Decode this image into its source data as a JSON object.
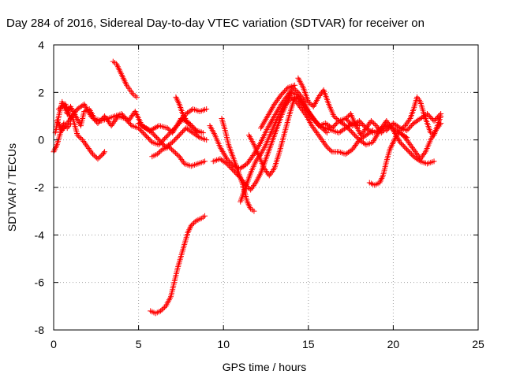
{
  "chart_data": {
    "type": "scatter",
    "title": "Day 284 of 2016, Sidereal Day-to-day VTEC variation (SDTVAR) for receiver on",
    "xlabel": "GPS time / hours",
    "ylabel": "SDTVAR / TECUs",
    "xlim": [
      0,
      25
    ],
    "ylim": [
      -8,
      4
    ],
    "x_ticks": [
      0,
      5,
      10,
      15,
      20,
      25
    ],
    "x_tick_labels": [
      "0",
      "5",
      "10",
      "15",
      "20",
      "25"
    ],
    "y_ticks": [
      -8,
      -6,
      -4,
      -2,
      0,
      2,
      4
    ],
    "y_tick_labels": [
      "-8",
      "-6",
      "-4",
      "-2",
      "0",
      "2",
      "4"
    ],
    "grid": true,
    "marker": "+",
    "series": [
      {
        "color": "#ff0000",
        "points": [
          [
            0.1,
            0.3
          ],
          [
            0.3,
            1.0
          ],
          [
            0.5,
            1.6
          ],
          [
            0.8,
            1.1
          ],
          [
            1.0,
            1.4
          ],
          [
            1.3,
            1.0
          ],
          [
            1.6,
            0.6
          ],
          [
            1.8,
            1.2
          ],
          [
            2.1,
            1.3
          ],
          [
            2.4,
            0.9
          ],
          [
            2.8,
            0.8
          ],
          [
            3.2,
            0.9
          ],
          [
            3.6,
            1.0
          ],
          [
            4.0,
            1.1
          ],
          [
            4.4,
            0.8
          ],
          [
            4.8,
            1.2
          ],
          [
            5.2,
            0.6
          ],
          [
            5.7,
            0.4
          ],
          [
            6.2,
            0.6
          ],
          [
            6.7,
            0.5
          ],
          [
            7.0,
            0.3
          ],
          [
            7.5,
            0.9
          ],
          [
            8.0,
            0.7
          ],
          [
            8.4,
            0.4
          ],
          [
            8.8,
            0.3
          ]
        ]
      },
      {
        "color": "#ff0000",
        "points": [
          [
            0.2,
            0.8
          ],
          [
            0.5,
            0.4
          ],
          [
            0.8,
            0.7
          ],
          [
            1.1,
            1.0
          ],
          [
            1.4,
            0.2
          ],
          [
            1.7,
            0.0
          ],
          [
            2.0,
            -0.3
          ],
          [
            2.3,
            -0.6
          ],
          [
            2.6,
            -0.8
          ],
          [
            2.9,
            -0.6
          ],
          [
            3.0,
            -0.5
          ]
        ]
      },
      {
        "color": "#ff0000",
        "points": [
          [
            0.3,
            1.3
          ],
          [
            0.7,
            1.5
          ],
          [
            1.0,
            0.9
          ],
          [
            1.4,
            1.3
          ],
          [
            1.8,
            1.5
          ],
          [
            2.2,
            1.0
          ],
          [
            2.6,
            0.7
          ],
          [
            3.0,
            1.0
          ],
          [
            3.4,
            0.6
          ],
          [
            3.8,
            1.0
          ],
          [
            4.2,
            0.9
          ],
          [
            4.6,
            0.6
          ],
          [
            5.0,
            0.5
          ],
          [
            5.4,
            0.2
          ],
          [
            5.8,
            -0.1
          ],
          [
            6.2,
            -0.2
          ],
          [
            6.6,
            0.1
          ],
          [
            7.0,
            0.4
          ],
          [
            7.4,
            0.7
          ],
          [
            7.8,
            1.1
          ],
          [
            8.2,
            1.3
          ],
          [
            8.6,
            1.2
          ],
          [
            9.0,
            1.3
          ]
        ]
      },
      {
        "color": "#ff0000",
        "points": [
          [
            0.0,
            -0.5
          ],
          [
            0.2,
            -0.2
          ],
          [
            0.4,
            0.3
          ],
          [
            0.6,
            0.7
          ],
          [
            0.8,
            0.5
          ],
          [
            1.0,
            0.7
          ]
        ]
      },
      {
        "color": "#ff0000",
        "points": [
          [
            3.5,
            3.3
          ],
          [
            3.7,
            3.2
          ],
          [
            3.9,
            2.9
          ],
          [
            4.1,
            2.6
          ],
          [
            4.3,
            2.3
          ],
          [
            4.5,
            2.1
          ],
          [
            4.7,
            1.9
          ],
          [
            4.9,
            1.8
          ]
        ]
      },
      {
        "color": "#ff0000",
        "points": [
          [
            5.0,
            0.7
          ],
          [
            5.4,
            0.5
          ],
          [
            5.8,
            0.3
          ],
          [
            6.2,
            0.0
          ],
          [
            6.6,
            -0.3
          ],
          [
            7.0,
            -0.1
          ],
          [
            7.4,
            0.2
          ],
          [
            7.8,
            0.5
          ],
          [
            8.2,
            0.3
          ],
          [
            8.6,
            0.1
          ],
          [
            9.0,
            0.0
          ]
        ]
      },
      {
        "color": "#ff0000",
        "points": [
          [
            5.8,
            -0.7
          ],
          [
            6.1,
            -0.6
          ],
          [
            6.4,
            -0.4
          ],
          [
            6.8,
            -0.3
          ],
          [
            7.1,
            -0.5
          ],
          [
            7.4,
            -0.7
          ],
          [
            7.7,
            -1.0
          ],
          [
            8.1,
            -1.1
          ],
          [
            8.5,
            -1.0
          ],
          [
            8.9,
            -0.9
          ]
        ]
      },
      {
        "color": "#ff0000",
        "points": [
          [
            7.2,
            1.8
          ],
          [
            7.4,
            1.5
          ],
          [
            7.6,
            1.1
          ],
          [
            7.9,
            0.7
          ],
          [
            8.2,
            0.5
          ],
          [
            8.5,
            0.3
          ]
        ]
      },
      {
        "color": "#ff0000",
        "points": [
          [
            5.7,
            -7.2
          ],
          [
            6.0,
            -7.3
          ],
          [
            6.3,
            -7.2
          ],
          [
            6.6,
            -7.0
          ],
          [
            6.9,
            -6.6
          ],
          [
            7.1,
            -6.0
          ],
          [
            7.3,
            -5.4
          ],
          [
            7.5,
            -4.9
          ],
          [
            7.7,
            -4.4
          ],
          [
            7.9,
            -3.9
          ],
          [
            8.1,
            -3.6
          ],
          [
            8.4,
            -3.4
          ],
          [
            8.7,
            -3.3
          ],
          [
            8.9,
            -3.2
          ]
        ]
      },
      {
        "color": "#ff0000",
        "points": [
          [
            9.2,
            0.6
          ],
          [
            9.5,
            0.2
          ],
          [
            9.8,
            -0.3
          ],
          [
            10.2,
            -0.8
          ],
          [
            10.6,
            -1.1
          ],
          [
            11.0,
            -1.2
          ],
          [
            11.4,
            -1.0
          ],
          [
            11.8,
            -0.6
          ],
          [
            12.2,
            -0.1
          ],
          [
            12.6,
            0.5
          ],
          [
            13.0,
            1.0
          ],
          [
            13.4,
            1.5
          ],
          [
            13.8,
            1.9
          ],
          [
            14.1,
            2.2
          ],
          [
            14.4,
            2.0
          ],
          [
            14.7,
            1.7
          ],
          [
            15.0,
            1.2
          ],
          [
            15.3,
            0.9
          ],
          [
            15.6,
            0.6
          ],
          [
            16.0,
            0.5
          ],
          [
            16.4,
            0.4
          ],
          [
            16.8,
            0.3
          ],
          [
            17.2,
            0.5
          ],
          [
            17.6,
            0.7
          ],
          [
            18.0,
            0.6
          ]
        ]
      },
      {
        "color": "#ff0000",
        "points": [
          [
            9.4,
            -0.9
          ],
          [
            9.8,
            -0.8
          ],
          [
            10.2,
            -1.0
          ],
          [
            10.6,
            -1.3
          ],
          [
            11.0,
            -1.6
          ],
          [
            11.3,
            -1.9
          ],
          [
            11.6,
            -2.1
          ],
          [
            11.9,
            -1.8
          ],
          [
            12.2,
            -1.4
          ],
          [
            12.5,
            -0.8
          ],
          [
            12.8,
            -0.2
          ],
          [
            13.1,
            0.4
          ],
          [
            13.4,
            1.0
          ],
          [
            13.7,
            1.5
          ],
          [
            14.0,
            1.8
          ],
          [
            14.3,
            1.6
          ],
          [
            14.6,
            1.3
          ],
          [
            14.9,
            1.0
          ],
          [
            15.2,
            0.6
          ],
          [
            15.5,
            0.3
          ],
          [
            15.8,
            0.0
          ],
          [
            16.1,
            -0.3
          ],
          [
            16.4,
            -0.5
          ],
          [
            16.8,
            -0.5
          ],
          [
            17.2,
            -0.6
          ],
          [
            17.6,
            -0.4
          ],
          [
            18.0,
            0.0
          ],
          [
            18.4,
            0.2
          ],
          [
            18.8,
            0.4
          ]
        ]
      },
      {
        "color": "#ff0000",
        "points": [
          [
            9.9,
            0.9
          ],
          [
            10.1,
            0.4
          ],
          [
            10.3,
            -0.2
          ],
          [
            10.5,
            -0.6
          ],
          [
            10.8,
            -1.2
          ],
          [
            11.1,
            -1.8
          ],
          [
            11.4,
            -2.6
          ],
          [
            11.6,
            -2.9
          ],
          [
            11.8,
            -3.0
          ]
        ]
      },
      {
        "color": "#ff0000",
        "points": [
          [
            11.0,
            -2.6
          ],
          [
            11.3,
            -2.0
          ],
          [
            11.6,
            -1.4
          ],
          [
            11.9,
            -0.9
          ],
          [
            12.2,
            -0.6
          ],
          [
            12.5,
            -0.2
          ],
          [
            12.8,
            0.3
          ],
          [
            13.1,
            0.8
          ],
          [
            13.4,
            1.2
          ],
          [
            13.7,
            1.6
          ],
          [
            14.0,
            2.0
          ],
          [
            14.3,
            1.9
          ],
          [
            14.6,
            1.6
          ],
          [
            14.9,
            1.3
          ],
          [
            15.2,
            1.0
          ],
          [
            15.5,
            0.7
          ],
          [
            15.8,
            0.5
          ],
          [
            16.1,
            0.3
          ]
        ]
      },
      {
        "color": "#ff0000",
        "points": [
          [
            11.5,
            0.2
          ],
          [
            11.8,
            -0.2
          ],
          [
            12.1,
            -0.7
          ],
          [
            12.4,
            -1.2
          ],
          [
            12.7,
            -1.5
          ],
          [
            13.0,
            -1.2
          ],
          [
            13.3,
            -0.5
          ],
          [
            13.6,
            0.3
          ],
          [
            13.9,
            1.1
          ],
          [
            14.2,
            1.8
          ],
          [
            14.5,
            1.7
          ],
          [
            14.8,
            1.3
          ],
          [
            15.1,
            1.0
          ],
          [
            15.4,
            0.8
          ],
          [
            15.7,
            0.6
          ],
          [
            16.0,
            0.7
          ],
          [
            16.4,
            0.5
          ],
          [
            16.8,
            0.8
          ],
          [
            17.2,
            0.9
          ],
          [
            17.6,
            0.6
          ],
          [
            18.0,
            0.8
          ],
          [
            18.4,
            0.5
          ],
          [
            18.8,
            0.3
          ],
          [
            19.2,
            0.4
          ],
          [
            19.6,
            0.6
          ],
          [
            20.0,
            0.5
          ],
          [
            20.4,
            0.3
          ],
          [
            20.8,
            0.1
          ]
        ]
      },
      {
        "color": "#ff0000",
        "points": [
          [
            12.2,
            0.5
          ],
          [
            12.6,
            1.0
          ],
          [
            13.0,
            1.5
          ],
          [
            13.4,
            1.9
          ],
          [
            13.8,
            2.2
          ],
          [
            14.2,
            2.3
          ]
        ]
      },
      {
        "color": "#ff0000",
        "points": [
          [
            14.4,
            2.6
          ],
          [
            14.7,
            2.2
          ],
          [
            15.0,
            1.6
          ],
          [
            15.3,
            1.4
          ],
          [
            15.6,
            1.8
          ],
          [
            15.9,
            2.1
          ],
          [
            16.2,
            1.5
          ],
          [
            16.5,
            1.0
          ],
          [
            16.8,
            0.8
          ],
          [
            17.2,
            0.6
          ],
          [
            17.6,
            0.3
          ],
          [
            18.0,
            0.0
          ],
          [
            18.4,
            -0.2
          ],
          [
            18.8,
            -0.1
          ],
          [
            19.2,
            0.4
          ],
          [
            19.6,
            0.8
          ],
          [
            20.0,
            0.4
          ],
          [
            20.4,
            -0.1
          ],
          [
            20.8,
            -0.4
          ],
          [
            21.2,
            -0.7
          ],
          [
            21.6,
            -0.9
          ],
          [
            22.0,
            -1.0
          ],
          [
            22.4,
            -0.9
          ]
        ]
      },
      {
        "color": "#ff0000",
        "points": [
          [
            17.2,
            0.9
          ],
          [
            17.5,
            1.1
          ],
          [
            17.8,
            0.6
          ],
          [
            18.1,
            0.2
          ],
          [
            18.4,
            0.5
          ],
          [
            18.7,
            0.8
          ],
          [
            19.0,
            0.6
          ],
          [
            19.3,
            0.3
          ],
          [
            19.6,
            0.5
          ]
        ]
      },
      {
        "color": "#ff0000",
        "points": [
          [
            18.6,
            -1.8
          ],
          [
            18.9,
            -1.9
          ],
          [
            19.2,
            -1.8
          ],
          [
            19.4,
            -1.5
          ],
          [
            19.6,
            -0.9
          ],
          [
            19.8,
            -0.4
          ],
          [
            20.0,
            -0.1
          ],
          [
            20.2,
            0.2
          ],
          [
            20.4,
            0.4
          ],
          [
            20.7,
            0.6
          ],
          [
            21.0,
            0.9
          ],
          [
            21.2,
            1.3
          ],
          [
            21.4,
            1.8
          ],
          [
            21.6,
            1.6
          ],
          [
            21.8,
            1.1
          ],
          [
            22.0,
            0.7
          ],
          [
            22.2,
            0.3
          ],
          [
            22.4,
            0.2
          ],
          [
            22.6,
            0.6
          ],
          [
            22.8,
            1.0
          ]
        ]
      },
      {
        "color": "#ff0000",
        "points": [
          [
            20.4,
            0.3
          ],
          [
            20.7,
            0.1
          ],
          [
            21.0,
            -0.2
          ],
          [
            21.3,
            -0.5
          ],
          [
            21.6,
            -0.8
          ],
          [
            21.9,
            -0.5
          ],
          [
            22.2,
            0.0
          ],
          [
            22.5,
            0.4
          ],
          [
            22.8,
            0.7
          ]
        ]
      },
      {
        "color": "#ff0000",
        "points": [
          [
            19.6,
            0.4
          ],
          [
            20.0,
            0.7
          ],
          [
            20.4,
            0.5
          ],
          [
            20.8,
            0.4
          ],
          [
            21.2,
            0.7
          ],
          [
            21.6,
            0.9
          ],
          [
            22.0,
            1.1
          ],
          [
            22.4,
            0.8
          ],
          [
            22.8,
            1.1
          ]
        ]
      }
    ]
  }
}
